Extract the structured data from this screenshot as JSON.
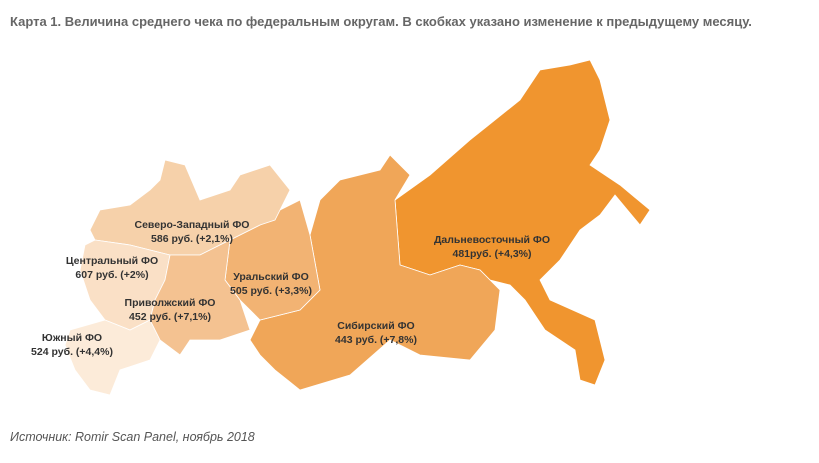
{
  "title": "Карта 1. Величина среднего чека по федеральным округам. В скобках указано изменение к предыдущему месяцу.",
  "regions": [
    {
      "name": "Северо-Западный ФО",
      "label": "586 руб. (+2,1%)"
    },
    {
      "name": "Центральный ФО",
      "label": "607 руб. (+2%)"
    },
    {
      "name": "Приволжский ФО",
      "label": "452 руб. (+7,1%)"
    },
    {
      "name": "Южный ФО",
      "label": "524 руб. (+4,4%)"
    },
    {
      "name": "Уральский ФО",
      "label": "505 руб. (+3,3%)"
    },
    {
      "name": "Сибирский ФО",
      "label": "443 руб. (+7,8%)"
    },
    {
      "name": "Дальневосточный ФО",
      "label": "481руб. (+4,3%)"
    }
  ],
  "source": "Источник: Romir Scan Panel, ноябрь 2018"
}
